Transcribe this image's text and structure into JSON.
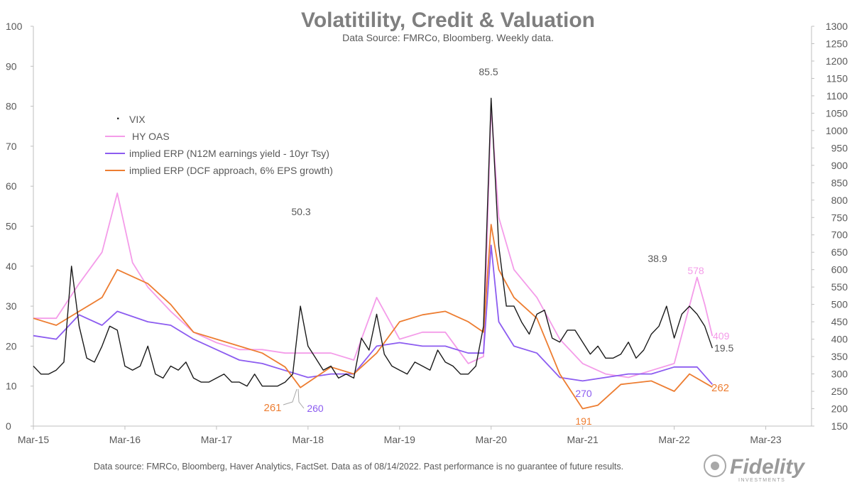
{
  "chart_data": {
    "type": "line",
    "title": "Volatitility, Credit & Valuation",
    "subtitle": "Data Source: FMRCo, Bloomberg.  Weekly data.",
    "x_ticks": [
      "Mar-15",
      "Mar-16",
      "Mar-17",
      "Mar-18",
      "Mar-19",
      "Mar-20",
      "Mar-21",
      "Mar-22",
      "Mar-23"
    ],
    "x_range": [
      "2015-03",
      "2023-09"
    ],
    "y_left": {
      "min": 0,
      "max": 100,
      "step": 10
    },
    "y_right": {
      "min": 150,
      "max": 1300,
      "step": 50
    },
    "grid": false,
    "legend_position": "top-left",
    "series": [
      {
        "name": "VIX",
        "axis": "left",
        "color": "#1a1a1a",
        "marker": "·",
        "x": [
          "2015-03",
          "2015-04",
          "2015-05",
          "2015-06",
          "2015-07",
          "2015-08",
          "2015-09",
          "2015-10",
          "2015-11",
          "2015-12",
          "2016-01",
          "2016-02",
          "2016-03",
          "2016-04",
          "2016-05",
          "2016-06",
          "2016-07",
          "2016-08",
          "2016-09",
          "2016-10",
          "2016-11",
          "2016-12",
          "2017-01",
          "2017-02",
          "2017-03",
          "2017-04",
          "2017-05",
          "2017-06",
          "2017-07",
          "2017-08",
          "2017-09",
          "2017-10",
          "2017-11",
          "2017-12",
          "2018-01",
          "2018-02",
          "2018-03",
          "2018-04",
          "2018-05",
          "2018-06",
          "2018-07",
          "2018-08",
          "2018-09",
          "2018-10",
          "2018-11",
          "2018-12",
          "2019-01",
          "2019-02",
          "2019-03",
          "2019-04",
          "2019-05",
          "2019-06",
          "2019-07",
          "2019-08",
          "2019-09",
          "2019-10",
          "2019-11",
          "2019-12",
          "2020-01",
          "2020-02",
          "2020-03",
          "2020-04",
          "2020-05",
          "2020-06",
          "2020-07",
          "2020-08",
          "2020-09",
          "2020-10",
          "2020-11",
          "2020-12",
          "2021-01",
          "2021-02",
          "2021-03",
          "2021-04",
          "2021-05",
          "2021-06",
          "2021-07",
          "2021-08",
          "2021-09",
          "2021-10",
          "2021-11",
          "2021-12",
          "2022-01",
          "2022-02",
          "2022-03",
          "2022-04",
          "2022-05",
          "2022-06",
          "2022-07",
          "2022-08"
        ],
        "values": [
          15,
          13,
          13,
          14,
          16,
          40,
          25,
          17,
          16,
          20,
          25,
          24,
          15,
          14,
          15,
          20,
          13,
          12,
          15,
          14,
          16,
          12,
          11,
          11,
          12,
          13,
          11,
          11,
          10,
          13,
          10,
          10,
          10,
          11,
          13,
          30,
          20,
          17,
          14,
          15,
          12,
          13,
          12,
          22,
          19,
          28,
          18,
          15,
          14,
          13,
          16,
          15,
          14,
          19,
          16,
          15,
          13,
          13,
          15,
          25,
          82,
          45,
          30,
          30,
          26,
          23,
          28,
          29,
          22,
          21,
          24,
          24,
          21,
          18,
          20,
          17,
          17,
          18,
          21,
          17,
          19,
          23,
          25,
          30,
          22,
          28,
          30,
          28,
          25,
          19.5
        ]
      },
      {
        "name": "HY OAS",
        "axis": "right",
        "color": "#f49ce9",
        "x": [
          "2015-03",
          "2015-06",
          "2015-09",
          "2015-12",
          "2016-02",
          "2016-04",
          "2016-06",
          "2016-09",
          "2016-12",
          "2017-03",
          "2017-06",
          "2017-09",
          "2017-12",
          "2018-03",
          "2018-06",
          "2018-09",
          "2018-12",
          "2019-03",
          "2019-06",
          "2019-09",
          "2019-12",
          "2020-02",
          "2020-03",
          "2020-04",
          "2020-06",
          "2020-09",
          "2020-12",
          "2021-03",
          "2021-06",
          "2021-09",
          "2021-12",
          "2022-03",
          "2022-06",
          "2022-07",
          "2022-08"
        ],
        "values": [
          460,
          460,
          560,
          650,
          820,
          620,
          550,
          480,
          420,
          390,
          370,
          370,
          360,
          360,
          360,
          340,
          520,
          400,
          420,
          420,
          330,
          350,
          1070,
          750,
          600,
          520,
          400,
          330,
          300,
          290,
          310,
          330,
          578,
          500,
          409
        ]
      },
      {
        "name": "implied ERP (N12M earnings yield - 10yr Tsy)",
        "axis": "right",
        "color": "#8c5cf0",
        "x": [
          "2015-03",
          "2015-06",
          "2015-09",
          "2015-12",
          "2016-02",
          "2016-06",
          "2016-09",
          "2016-12",
          "2017-03",
          "2017-06",
          "2017-09",
          "2017-12",
          "2018-03",
          "2018-06",
          "2018-09",
          "2018-12",
          "2019-03",
          "2019-06",
          "2019-09",
          "2019-12",
          "2020-02",
          "2020-03",
          "2020-04",
          "2020-06",
          "2020-09",
          "2020-12",
          "2021-03",
          "2021-06",
          "2021-09",
          "2021-12",
          "2022-03",
          "2022-06",
          "2022-08"
        ],
        "values": [
          410,
          400,
          470,
          440,
          480,
          450,
          440,
          400,
          370,
          340,
          330,
          310,
          290,
          300,
          300,
          380,
          390,
          380,
          380,
          360,
          360,
          670,
          450,
          380,
          360,
          290,
          280,
          290,
          300,
          300,
          320,
          320,
          270
        ]
      },
      {
        "name": "implied ERP (DCF approach, 6% EPS growth)",
        "axis": "right",
        "color": "#ed7d31",
        "x": [
          "2015-03",
          "2015-06",
          "2015-09",
          "2015-12",
          "2016-02",
          "2016-06",
          "2016-09",
          "2016-12",
          "2017-03",
          "2017-06",
          "2017-09",
          "2017-12",
          "2018-02",
          "2018-06",
          "2018-09",
          "2018-12",
          "2019-03",
          "2019-06",
          "2019-09",
          "2019-12",
          "2020-02",
          "2020-03",
          "2020-04",
          "2020-06",
          "2020-09",
          "2020-12",
          "2021-03",
          "2021-05",
          "2021-08",
          "2021-12",
          "2022-03",
          "2022-05",
          "2022-08"
        ],
        "values": [
          460,
          440,
          480,
          520,
          600,
          560,
          500,
          420,
          400,
          380,
          360,
          320,
          261,
          320,
          300,
          360,
          450,
          470,
          480,
          450,
          420,
          730,
          600,
          520,
          460,
          300,
          200,
          210,
          270,
          280,
          250,
          300,
          262
        ]
      }
    ],
    "annotations": [
      {
        "text": "85.5",
        "color": "#595959"
      },
      {
        "text": "50.3",
        "color": "#595959"
      },
      {
        "text": "38.9",
        "color": "#595959"
      },
      {
        "text": "578",
        "color": "#f49ce9"
      },
      {
        "text": "409",
        "color": "#f49ce9"
      },
      {
        "text": "19.5",
        "color": "#595959"
      },
      {
        "text": "262",
        "color": "#ed7d31"
      },
      {
        "text": "270",
        "color": "#8c5cf0"
      },
      {
        "text": "191",
        "color": "#ed7d31"
      },
      {
        "text": "261",
        "color": "#ed7d31"
      },
      {
        "text": "260",
        "color": "#8c5cf0"
      }
    ]
  },
  "footer": {
    "source_note": "Data source: FMRCo, Bloomberg, Haver Analytics, FactSet. Data as of 08/14/2022. Past performance is no guarantee of future results.",
    "logo_text": "Fidelity",
    "logo_subtext": "INVESTMENTS"
  },
  "colors": {
    "axis": "#bfbfbf",
    "text": "#595959",
    "title": "#7f7f7f"
  }
}
